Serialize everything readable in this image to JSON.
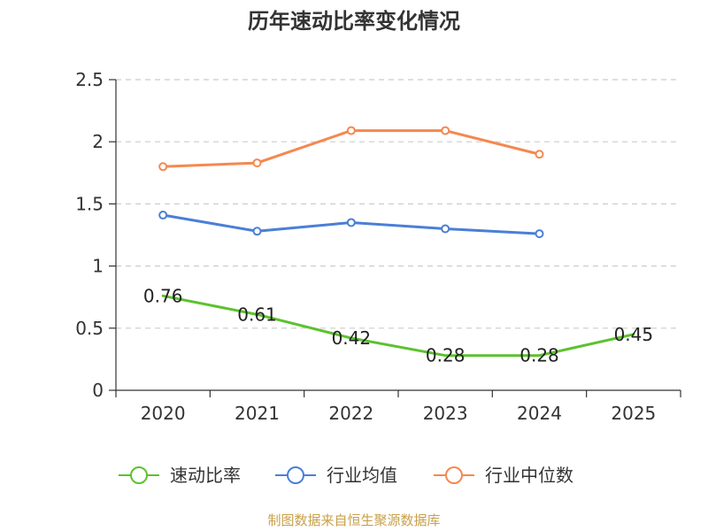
{
  "chart_data": {
    "type": "line",
    "title": "历年速动比率变化情况",
    "categories": [
      "2020",
      "2021",
      "2022",
      "2023",
      "2024",
      "2025"
    ],
    "y_ticks": [
      "0",
      "0.5",
      "1",
      "1.5",
      "2",
      "2.5"
    ],
    "ylim": [
      0,
      2.5
    ],
    "grid": true,
    "legend_position": "bottom-center",
    "series": [
      {
        "name": "速动比率",
        "color": "#5cc22e",
        "values": [
          0.76,
          0.61,
          0.42,
          0.28,
          0.28,
          0.45
        ],
        "labels": [
          "0.76",
          "0.61",
          "0.42",
          "0.28",
          "0.28",
          "0.45"
        ],
        "markers": false
      },
      {
        "name": "行业均值",
        "color": "#4a7fd6",
        "values": [
          1.41,
          1.28,
          1.35,
          1.3,
          1.26,
          null
        ],
        "markers": true
      },
      {
        "name": "行业中位数",
        "color": "#f5884f",
        "values": [
          1.8,
          1.83,
          2.09,
          2.09,
          1.9,
          null
        ],
        "markers": true
      }
    ]
  },
  "source": "制图数据来自恒生聚源数据库"
}
